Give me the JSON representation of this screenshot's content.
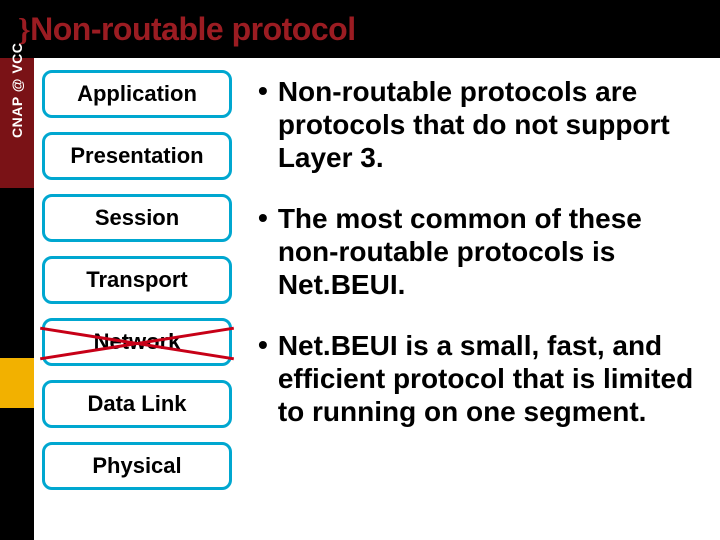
{
  "title": {
    "brace": "}",
    "text": "Non-routable protocol",
    "color": "#9b1c22"
  },
  "sidebar": {
    "label": "CNAP @ VCC",
    "segments": [
      {
        "color": "#7a1216"
      },
      {
        "color": "#000000"
      },
      {
        "color": "#f2b100"
      },
      {
        "color": "#000000"
      }
    ]
  },
  "layers": [
    {
      "label": "Application",
      "border_color": "#00a7d0",
      "crossed": false
    },
    {
      "label": "Presentation",
      "border_color": "#00a7d0",
      "crossed": false
    },
    {
      "label": "Session",
      "border_color": "#00a7d0",
      "crossed": false
    },
    {
      "label": "Transport",
      "border_color": "#00a7d0",
      "crossed": false
    },
    {
      "label": "Network",
      "border_color": "#00a7d0",
      "crossed": true
    },
    {
      "label": "Data Link",
      "border_color": "#00a7d0",
      "crossed": false
    },
    {
      "label": "Physical",
      "border_color": "#00a7d0",
      "crossed": false
    }
  ],
  "bullets": [
    "Non-routable protocols are protocols that do not support Layer 3.",
    "The most common of these non-routable protocols is Net.BEUI.",
    "Net.BEUI is a small, fast, and efficient protocol that is limited to running on one segment."
  ],
  "cross_color": "#c70017",
  "background_color": "#ffffff",
  "title_bg": "#000000"
}
